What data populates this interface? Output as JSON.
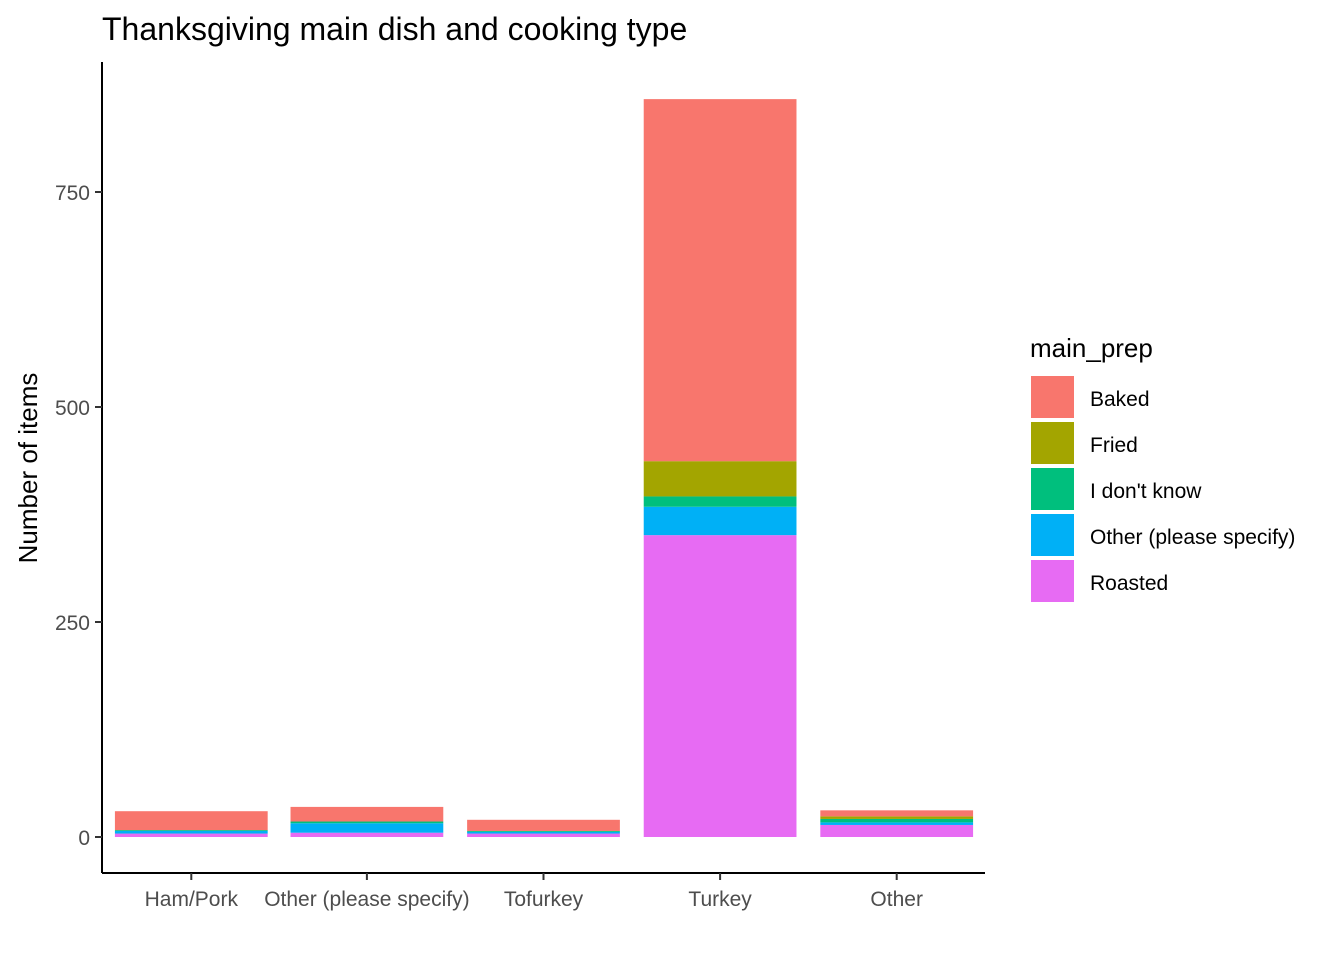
{
  "chart_data": {
    "type": "bar",
    "stacked": true,
    "title": "Thanksgiving main dish and cooking type",
    "xlabel": "",
    "ylabel": "Number of items",
    "ylim": [
      0,
      880
    ],
    "yticks": [
      0,
      250,
      500,
      750
    ],
    "categories": [
      "Ham/Pork",
      "Other (please specify)",
      "Tofurkey",
      "Turkey",
      "Other"
    ],
    "legend": {
      "title": "main_prep",
      "position": "right"
    },
    "grid": false,
    "series": [
      {
        "name": "Baked",
        "color": "#F8766D",
        "values": [
          22,
          17,
          13,
          421,
          7
        ]
      },
      {
        "name": "Fried",
        "color": "#A3A500",
        "values": [
          0,
          0,
          0,
          41,
          3
        ]
      },
      {
        "name": "I don't know",
        "color": "#00BF7D",
        "values": [
          1,
          2,
          1,
          12,
          4
        ]
      },
      {
        "name": "Other (please specify)",
        "color": "#00B0F6",
        "values": [
          3,
          11,
          2,
          33,
          3
        ]
      },
      {
        "name": "Roasted",
        "color": "#E76BF3",
        "values": [
          4,
          5,
          4,
          351,
          14
        ]
      }
    ]
  }
}
